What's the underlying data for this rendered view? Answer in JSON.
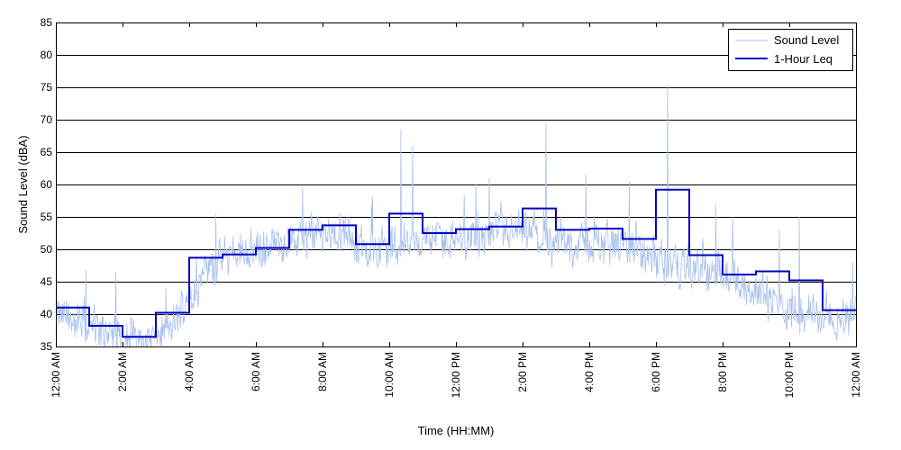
{
  "chart_data": {
    "type": "line",
    "title": "",
    "xlabel": "Time (HH:MM)",
    "ylabel": "Sound Level (dBA)",
    "ylim": [
      35,
      85
    ],
    "yticks": [
      35,
      40,
      45,
      50,
      55,
      60,
      65,
      70,
      75,
      80,
      85
    ],
    "xlim": [
      0,
      24
    ],
    "xticks": [
      0,
      2,
      4,
      6,
      8,
      10,
      12,
      14,
      16,
      18,
      20,
      22,
      24
    ],
    "xtick_labels": [
      "12:00 AM",
      "2:00 AM",
      "4:00 AM",
      "6:00 AM",
      "8:00 AM",
      "10:00 AM",
      "12:00 PM",
      "2:00 PM",
      "4:00 PM",
      "6:00 PM",
      "8:00 PM",
      "10:00 PM",
      "12:00 AM"
    ],
    "grid": {
      "horizontal": true,
      "vertical": false
    },
    "legend": {
      "placement": "top-right",
      "entries": [
        "Sound Level",
        "1-Hour Leq"
      ]
    },
    "series": [
      {
        "name": "Sound Level",
        "style": "thin-noisy-line",
        "color": "#a9c0ec",
        "baseline_profile": {
          "x": [
            0,
            0.5,
            1,
            1.5,
            2,
            2.5,
            3,
            3.5,
            4,
            4.5,
            5,
            5.5,
            6,
            6.5,
            7,
            7.5,
            8,
            8.5,
            9,
            9.5,
            10,
            10.5,
            11,
            11.5,
            12,
            12.5,
            13,
            13.5,
            14,
            14.5,
            15,
            15.5,
            16,
            16.5,
            17,
            17.5,
            18,
            18.5,
            19,
            19.5,
            20,
            20.5,
            21,
            21.5,
            22,
            22.5,
            23,
            23.5,
            24
          ],
          "y": [
            40,
            39,
            38,
            37,
            36.5,
            36,
            36.5,
            38,
            43,
            46.5,
            48.5,
            49.5,
            50,
            50.5,
            51,
            51.5,
            52.5,
            52.5,
            50.5,
            50,
            50,
            51,
            51.5,
            51.5,
            51.5,
            52,
            52,
            52.5,
            52.5,
            51.5,
            51,
            50.5,
            51,
            50.5,
            50.5,
            49.5,
            48,
            47.5,
            47.5,
            46,
            46,
            45,
            43.5,
            42,
            40.5,
            40,
            39.5,
            39,
            41
          ]
        },
        "peaks": [
          {
            "x": 10.35,
            "y": 68.5
          },
          {
            "x": 10.7,
            "y": 66
          },
          {
            "x": 14.7,
            "y": 69.5
          },
          {
            "x": 18.35,
            "y": 75.5
          },
          {
            "x": 7.4,
            "y": 59.5
          },
          {
            "x": 13.0,
            "y": 61
          },
          {
            "x": 15.9,
            "y": 61.5
          },
          {
            "x": 17.2,
            "y": 60.5
          },
          {
            "x": 12.6,
            "y": 60
          },
          {
            "x": 9.5,
            "y": 58
          },
          {
            "x": 4.8,
            "y": 55.5
          },
          {
            "x": 3.3,
            "y": 44
          },
          {
            "x": 1.8,
            "y": 46.5
          },
          {
            "x": 0.9,
            "y": 46.8
          },
          {
            "x": 19.8,
            "y": 57
          },
          {
            "x": 20.3,
            "y": 55
          },
          {
            "x": 22.3,
            "y": 55
          },
          {
            "x": 21.7,
            "y": 53
          },
          {
            "x": 23.9,
            "y": 48
          }
        ]
      },
      {
        "name": "1-Hour Leq",
        "style": "step",
        "color": "#0000c8",
        "hours": [
          0,
          1,
          2,
          3,
          4,
          5,
          6,
          7,
          8,
          9,
          10,
          11,
          12,
          13,
          14,
          15,
          16,
          17,
          18,
          19,
          20,
          21,
          22,
          23
        ],
        "values": [
          41,
          38.2,
          36.5,
          40.2,
          48.7,
          49.2,
          50.2,
          53,
          53.7,
          50.8,
          55.5,
          52.5,
          53.1,
          53.5,
          56.3,
          53.0,
          53.2,
          51.6,
          59.2,
          49.1,
          46.1,
          46.6,
          45.2,
          40.6
        ]
      }
    ]
  }
}
